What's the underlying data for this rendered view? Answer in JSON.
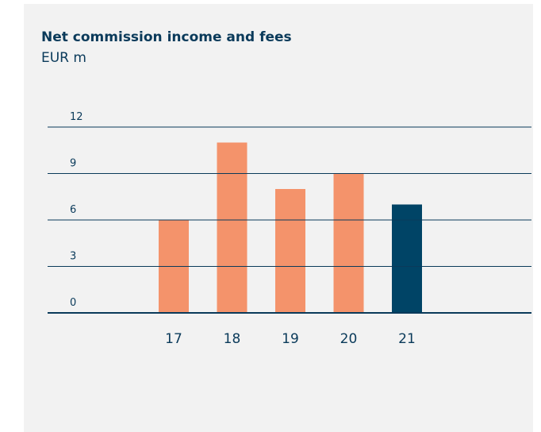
{
  "chart_data": {
    "type": "bar",
    "title": "Net commission income and fees",
    "subtitle": "EUR m",
    "categories": [
      "17",
      "18",
      "19",
      "20",
      "21"
    ],
    "values": [
      6,
      11,
      8,
      9,
      7
    ],
    "colors": [
      "#f4936b",
      "#f4936b",
      "#f4936b",
      "#f4936b",
      "#004466"
    ],
    "ylim": [
      0,
      12
    ],
    "yticks": [
      0,
      3,
      6,
      9,
      12
    ],
    "grid": true
  }
}
